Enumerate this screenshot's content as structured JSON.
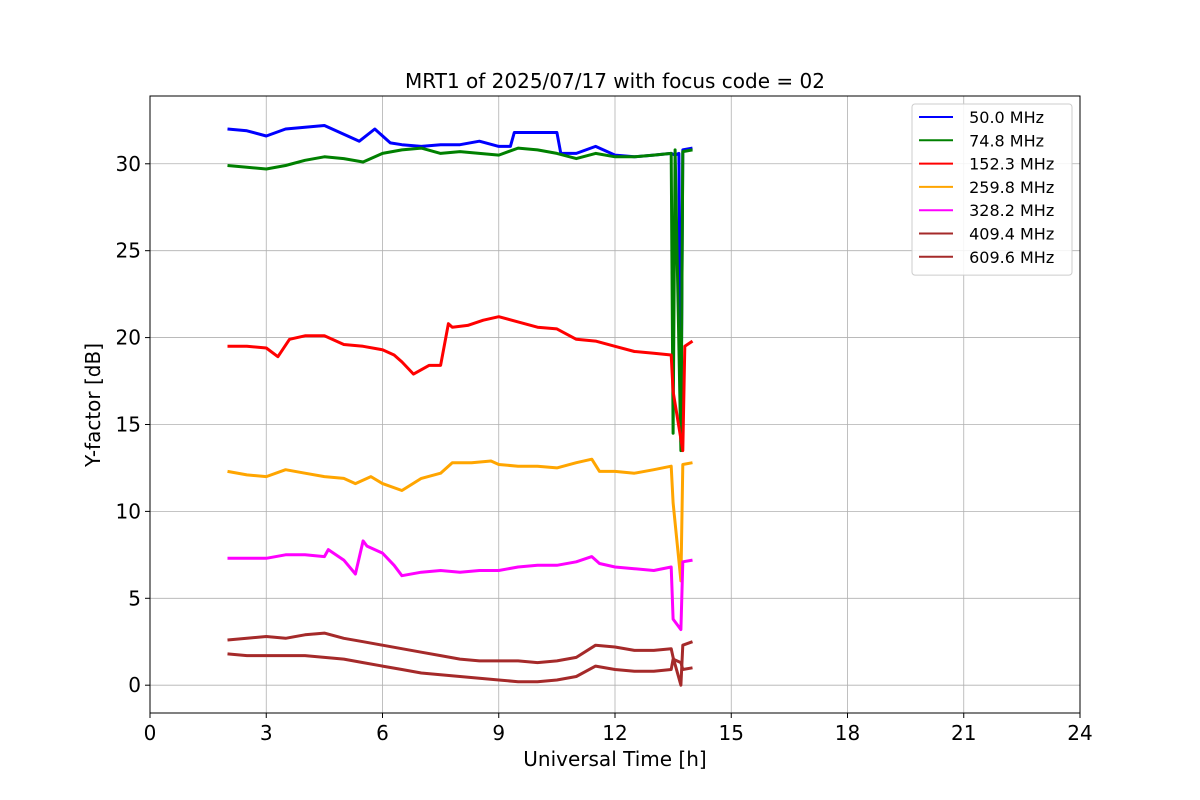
{
  "chart_data": {
    "type": "line",
    "title": "MRT1 of 2025/07/17 with focus code = 02",
    "xlabel": "Universal Time [h]",
    "ylabel": "Y-factor [dB]",
    "xlim": [
      0,
      24
    ],
    "ylim": [
      -1.6,
      33.9
    ],
    "xticks": [
      0,
      3,
      6,
      9,
      12,
      15,
      18,
      21,
      24
    ],
    "yticks": [
      0,
      5,
      10,
      15,
      20,
      25,
      30
    ],
    "grid": true,
    "legend_position": "top-right",
    "series": [
      {
        "name": " 50.0 MHz",
        "color": "#0000ff",
        "x": [
          2.0,
          2.5,
          3.0,
          3.5,
          4.0,
          4.5,
          5.0,
          5.4,
          5.8,
          6.2,
          6.5,
          7.0,
          7.5,
          8.0,
          8.5,
          9.0,
          9.3,
          9.4,
          10.0,
          10.5,
          10.6,
          11.0,
          11.5,
          12.0,
          12.5,
          13.0,
          13.45,
          13.55,
          13.65,
          13.7,
          13.75,
          14.0
        ],
        "y": [
          32.0,
          31.9,
          31.6,
          32.0,
          32.1,
          32.2,
          31.7,
          31.3,
          32.0,
          31.2,
          31.1,
          31.0,
          31.1,
          31.1,
          31.3,
          31.0,
          31.0,
          31.8,
          31.8,
          31.8,
          30.6,
          30.6,
          31.0,
          30.5,
          30.4,
          30.5,
          30.6,
          30.5,
          30.6,
          14.0,
          30.8,
          30.9
        ]
      },
      {
        "name": " 74.8 MHz",
        "color": "#008000",
        "x": [
          2.0,
          2.5,
          3.0,
          3.5,
          4.0,
          4.5,
          5.0,
          5.5,
          6.0,
          6.5,
          7.0,
          7.5,
          8.0,
          8.5,
          9.0,
          9.5,
          10.0,
          10.5,
          11.0,
          11.5,
          12.0,
          12.5,
          13.0,
          13.45,
          13.5,
          13.55,
          13.7,
          13.75,
          14.0
        ],
        "y": [
          29.9,
          29.8,
          29.7,
          29.9,
          30.2,
          30.4,
          30.3,
          30.1,
          30.6,
          30.8,
          30.9,
          30.6,
          30.7,
          30.6,
          30.5,
          30.9,
          30.8,
          30.6,
          30.3,
          30.6,
          30.4,
          30.4,
          30.5,
          30.6,
          14.5,
          30.8,
          13.5,
          30.7,
          30.8
        ]
      },
      {
        "name": " 152.3 MHz",
        "color": "#ff0000",
        "x": [
          2.0,
          2.5,
          3.0,
          3.3,
          3.6,
          4.0,
          4.5,
          5.0,
          5.5,
          6.0,
          6.3,
          6.5,
          6.8,
          7.2,
          7.5,
          7.7,
          7.8,
          8.2,
          8.6,
          9.0,
          9.5,
          10.0,
          10.5,
          11.0,
          11.5,
          12.0,
          12.5,
          13.0,
          13.45,
          13.5,
          13.75,
          13.8,
          14.0
        ],
        "y": [
          19.5,
          19.5,
          19.4,
          18.9,
          19.9,
          20.1,
          20.1,
          19.6,
          19.5,
          19.3,
          19.0,
          18.6,
          17.9,
          18.4,
          18.4,
          20.8,
          20.6,
          20.7,
          21.0,
          21.2,
          20.9,
          20.6,
          20.5,
          19.9,
          19.8,
          19.5,
          19.2,
          19.1,
          19.0,
          16.9,
          13.5,
          19.5,
          19.8
        ]
      },
      {
        "name": " 259.8 MHz",
        "color": "#ffa500",
        "x": [
          2.0,
          2.5,
          3.0,
          3.5,
          4.0,
          4.5,
          5.0,
          5.3,
          5.7,
          6.0,
          6.5,
          7.0,
          7.5,
          7.8,
          8.3,
          8.8,
          9.0,
          9.5,
          10.0,
          10.5,
          11.0,
          11.4,
          11.6,
          12.0,
          12.5,
          13.0,
          13.45,
          13.5,
          13.7,
          13.75,
          14.0
        ],
        "y": [
          12.3,
          12.1,
          12.0,
          12.4,
          12.2,
          12.0,
          11.9,
          11.6,
          12.0,
          11.6,
          11.2,
          11.9,
          12.2,
          12.8,
          12.8,
          12.9,
          12.7,
          12.6,
          12.6,
          12.5,
          12.8,
          13.0,
          12.3,
          12.3,
          12.2,
          12.4,
          12.6,
          10.5,
          6.0,
          12.7,
          12.8
        ]
      },
      {
        "name": " 328.2 MHz",
        "color": "#ff00ff",
        "x": [
          2.0,
          2.5,
          3.0,
          3.5,
          4.0,
          4.5,
          4.6,
          5.0,
          5.3,
          5.5,
          5.6,
          6.0,
          6.3,
          6.5,
          7.0,
          7.5,
          8.0,
          8.5,
          9.0,
          9.5,
          10.0,
          10.5,
          11.0,
          11.4,
          11.6,
          12.0,
          12.5,
          13.0,
          13.45,
          13.5,
          13.7,
          13.75,
          14.0
        ],
        "y": [
          7.3,
          7.3,
          7.3,
          7.5,
          7.5,
          7.4,
          7.8,
          7.2,
          6.4,
          8.3,
          8.0,
          7.6,
          6.9,
          6.3,
          6.5,
          6.6,
          6.5,
          6.6,
          6.6,
          6.8,
          6.9,
          6.9,
          7.1,
          7.4,
          7.0,
          6.8,
          6.7,
          6.6,
          6.8,
          3.8,
          3.2,
          7.1,
          7.2
        ]
      },
      {
        "name": " 409.4 MHz",
        "color": "#a52a2a",
        "x": [
          2.0,
          2.5,
          3.0,
          3.5,
          4.0,
          4.5,
          5.0,
          5.5,
          6.0,
          6.5,
          7.0,
          7.5,
          8.0,
          8.5,
          9.0,
          9.5,
          10.0,
          10.5,
          11.0,
          11.5,
          12.0,
          12.5,
          13.0,
          13.45,
          13.5,
          13.7,
          13.75,
          14.0
        ],
        "y": [
          2.6,
          2.7,
          2.8,
          2.7,
          2.9,
          3.0,
          2.7,
          2.5,
          2.3,
          2.1,
          1.9,
          1.7,
          1.5,
          1.4,
          1.4,
          1.4,
          1.3,
          1.4,
          1.6,
          2.3,
          2.2,
          2.0,
          2.0,
          2.1,
          1.6,
          0.0,
          2.3,
          2.5
        ]
      },
      {
        "name": " 609.6 MHz",
        "color": "#a52a2a",
        "x": [
          2.0,
          2.5,
          3.0,
          3.5,
          4.0,
          4.5,
          5.0,
          5.5,
          6.0,
          6.5,
          7.0,
          7.5,
          8.0,
          8.5,
          9.0,
          9.5,
          10.0,
          10.5,
          11.0,
          11.5,
          12.0,
          12.5,
          13.0,
          13.45,
          13.5,
          13.7,
          13.75,
          14.0
        ],
        "y": [
          1.8,
          1.7,
          1.7,
          1.7,
          1.7,
          1.6,
          1.5,
          1.3,
          1.1,
          0.9,
          0.7,
          0.6,
          0.5,
          0.4,
          0.3,
          0.2,
          0.2,
          0.3,
          0.5,
          1.1,
          0.9,
          0.8,
          0.8,
          0.9,
          1.5,
          1.3,
          0.9,
          1.0
        ]
      }
    ]
  }
}
